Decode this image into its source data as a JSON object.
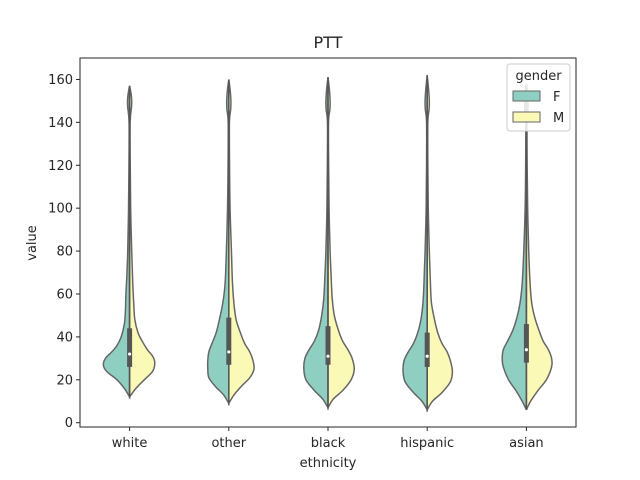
{
  "chart_data": {
    "type": "violin",
    "title": "PTT",
    "xlabel": "ethnicity",
    "ylabel": "value",
    "ylim": [
      -2,
      170
    ],
    "yticks": [
      0,
      20,
      40,
      60,
      80,
      100,
      120,
      140,
      160
    ],
    "categories": [
      "white",
      "other",
      "black",
      "hispanic",
      "asian"
    ],
    "split": true,
    "grid": false,
    "legend": {
      "title": "gender",
      "placement": "top-right",
      "entries": [
        {
          "name": "F",
          "color": "#8fcfc1"
        },
        {
          "name": "M",
          "color": "#fbf9b6"
        }
      ]
    },
    "colors": {
      "F": "#8fcfc1",
      "M": "#fbf9b6",
      "outline": "#666666",
      "box": "#555555"
    },
    "series": [
      {
        "category": "white",
        "low": 12,
        "high": 157,
        "F": {
          "profile": [
            [
              12,
              0
            ],
            [
              16,
              5
            ],
            [
              20,
              12
            ],
            [
              24,
              22
            ],
            [
              27,
              25
            ],
            [
              30,
              23
            ],
            [
              33,
              17
            ],
            [
              36,
              12
            ],
            [
              40,
              8
            ],
            [
              46,
              5
            ],
            [
              52,
              4
            ],
            [
              60,
              3.5
            ],
            [
              70,
              2.5
            ],
            [
              80,
              1.8
            ],
            [
              100,
              1
            ],
            [
              120,
              0.6
            ],
            [
              140,
              0.5
            ],
            [
              147,
              1.8
            ],
            [
              150,
              2
            ],
            [
              153,
              1.5
            ],
            [
              157,
              0
            ]
          ]
        },
        "M": {
          "profile": [
            [
              12,
              0
            ],
            [
              16,
              6
            ],
            [
              20,
              14
            ],
            [
              24,
              22
            ],
            [
              28,
              24
            ],
            [
              31,
              22
            ],
            [
              34,
              17
            ],
            [
              38,
              12
            ],
            [
              42,
              8
            ],
            [
              48,
              5
            ],
            [
              55,
              4
            ],
            [
              65,
              3
            ],
            [
              80,
              2
            ],
            [
              100,
              1
            ],
            [
              120,
              0.6
            ],
            [
              140,
              0.5
            ],
            [
              147,
              1.8
            ],
            [
              150,
              2
            ],
            [
              153,
              1.5
            ],
            [
              157,
              0
            ]
          ]
        },
        "box": {
          "q1": 26,
          "median": 32,
          "q3": 44
        }
      },
      {
        "category": "other",
        "low": 9,
        "high": 160,
        "F": {
          "profile": [
            [
              9,
              0
            ],
            [
              13,
              5
            ],
            [
              17,
              13
            ],
            [
              21,
              19
            ],
            [
              25,
              20
            ],
            [
              29,
              20
            ],
            [
              33,
              19
            ],
            [
              37,
              16
            ],
            [
              42,
              12
            ],
            [
              48,
              9
            ],
            [
              55,
              6
            ],
            [
              62,
              4
            ],
            [
              70,
              3
            ],
            [
              85,
              2
            ],
            [
              100,
              1.2
            ],
            [
              120,
              0.7
            ],
            [
              140,
              0.6
            ],
            [
              146,
              1.8
            ],
            [
              150,
              2
            ],
            [
              155,
              1.3
            ],
            [
              160,
              0
            ]
          ]
        },
        "M": {
          "profile": [
            [
              9,
              0
            ],
            [
              13,
              5
            ],
            [
              17,
              12
            ],
            [
              21,
              20
            ],
            [
              25,
              24
            ],
            [
              29,
              23
            ],
            [
              33,
              20
            ],
            [
              37,
              15
            ],
            [
              42,
              11
            ],
            [
              48,
              7
            ],
            [
              55,
              5
            ],
            [
              65,
              3.5
            ],
            [
              80,
              2.5
            ],
            [
              100,
              1.2
            ],
            [
              120,
              0.7
            ],
            [
              140,
              0.6
            ],
            [
              146,
              1.8
            ],
            [
              150,
              2
            ],
            [
              155,
              1.3
            ],
            [
              160,
              0
            ]
          ]
        },
        "box": {
          "q1": 27,
          "median": 33,
          "q3": 49
        }
      },
      {
        "category": "black",
        "low": 7,
        "high": 161,
        "F": {
          "profile": [
            [
              7,
              0
            ],
            [
              11,
              5
            ],
            [
              15,
              13
            ],
            [
              20,
              21
            ],
            [
              25,
              23
            ],
            [
              30,
              22
            ],
            [
              34,
              18
            ],
            [
              38,
              13
            ],
            [
              43,
              9
            ],
            [
              50,
              6
            ],
            [
              58,
              4
            ],
            [
              68,
              3
            ],
            [
              80,
              2
            ],
            [
              100,
              1
            ],
            [
              120,
              0.6
            ],
            [
              140,
              0.5
            ],
            [
              146,
              1.8
            ],
            [
              150,
              2
            ],
            [
              155,
              1.4
            ],
            [
              161,
              0
            ]
          ]
        },
        "M": {
          "profile": [
            [
              7,
              0
            ],
            [
              11,
              5
            ],
            [
              15,
              14
            ],
            [
              20,
              22
            ],
            [
              25,
              25
            ],
            [
              30,
              23
            ],
            [
              34,
              19
            ],
            [
              38,
              14
            ],
            [
              43,
              10
            ],
            [
              50,
              6
            ],
            [
              58,
              4
            ],
            [
              68,
              3
            ],
            [
              80,
              2
            ],
            [
              100,
              1
            ],
            [
              120,
              0.6
            ],
            [
              140,
              0.5
            ],
            [
              146,
              1.8
            ],
            [
              150,
              2
            ],
            [
              155,
              1.4
            ],
            [
              161,
              0
            ]
          ]
        },
        "box": {
          "q1": 27,
          "median": 31,
          "q3": 45
        }
      },
      {
        "category": "hispanic",
        "low": 6,
        "high": 162,
        "F": {
          "profile": [
            [
              6,
              0
            ],
            [
              10,
              5
            ],
            [
              14,
              13
            ],
            [
              19,
              21
            ],
            [
              24,
              23
            ],
            [
              29,
              22
            ],
            [
              33,
              18
            ],
            [
              37,
              13
            ],
            [
              42,
              9
            ],
            [
              48,
              6
            ],
            [
              56,
              4
            ],
            [
              66,
              3
            ],
            [
              80,
              2
            ],
            [
              100,
              1
            ],
            [
              120,
              0.6
            ],
            [
              140,
              0.6
            ],
            [
              146,
              1.8
            ],
            [
              150,
              2
            ],
            [
              155,
              1.4
            ],
            [
              162,
              0
            ]
          ]
        },
        "M": {
          "profile": [
            [
              6,
              0
            ],
            [
              10,
              5
            ],
            [
              14,
              14
            ],
            [
              19,
              22
            ],
            [
              24,
              24
            ],
            [
              29,
              22
            ],
            [
              33,
              19
            ],
            [
              37,
              14
            ],
            [
              42,
              10
            ],
            [
              48,
              7
            ],
            [
              56,
              4
            ],
            [
              66,
              3
            ],
            [
              80,
              2
            ],
            [
              100,
              1
            ],
            [
              120,
              0.6
            ],
            [
              140,
              0.6
            ],
            [
              146,
              1.8
            ],
            [
              150,
              2
            ],
            [
              155,
              1.4
            ],
            [
              162,
              0
            ]
          ]
        },
        "box": {
          "q1": 26,
          "median": 31,
          "q3": 42
        }
      },
      {
        "category": "asian",
        "low": 6,
        "high": 158,
        "F": {
          "profile": [
            [
              6,
              0
            ],
            [
              10,
              4
            ],
            [
              15,
              10
            ],
            [
              20,
              17
            ],
            [
              26,
              22
            ],
            [
              30,
              23
            ],
            [
              34,
              22
            ],
            [
              38,
              18
            ],
            [
              43,
              13
            ],
            [
              49,
              9
            ],
            [
              56,
              6
            ],
            [
              65,
              4
            ],
            [
              80,
              2.5
            ],
            [
              100,
              1.2
            ],
            [
              120,
              0.7
            ],
            [
              140,
              0.6
            ],
            [
              146,
              1.5
            ],
            [
              150,
              1.5
            ],
            [
              155,
              1
            ],
            [
              158,
              0
            ]
          ]
        },
        "M": {
          "profile": [
            [
              6,
              0
            ],
            [
              10,
              4
            ],
            [
              15,
              11
            ],
            [
              20,
              19
            ],
            [
              26,
              24
            ],
            [
              30,
              24
            ],
            [
              34,
              21
            ],
            [
              38,
              16
            ],
            [
              43,
              12
            ],
            [
              49,
              8
            ],
            [
              56,
              5
            ],
            [
              65,
              3.5
            ],
            [
              80,
              2.2
            ],
            [
              100,
              1.2
            ],
            [
              120,
              0.7
            ],
            [
              140,
              0.6
            ],
            [
              146,
              1.5
            ],
            [
              150,
              1.5
            ],
            [
              155,
              1
            ],
            [
              158,
              0
            ]
          ]
        },
        "box": {
          "q1": 28,
          "median": 34,
          "q3": 46
        }
      }
    ]
  }
}
